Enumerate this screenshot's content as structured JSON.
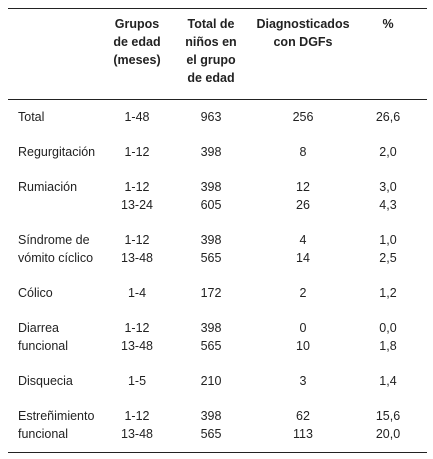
{
  "table": {
    "header": [
      [
        "Grupos",
        "de edad",
        "(meses)"
      ],
      [
        "Total de",
        "niños en",
        "el grupo",
        "de edad"
      ],
      [
        "Diagnosticados",
        "con DGFs"
      ],
      [
        "%"
      ]
    ],
    "rows": [
      {
        "label": [
          "Total"
        ],
        "values": [
          [
            "1-48",
            "963",
            "256",
            "26,6"
          ]
        ]
      },
      {
        "label": [
          "Regurgitación"
        ],
        "values": [
          [
            "1-12",
            "398",
            "8",
            "2,0"
          ]
        ]
      },
      {
        "label": [
          "Rumiación"
        ],
        "values": [
          [
            "1-12",
            "398",
            "12",
            "3,0"
          ],
          [
            "13-24",
            "605",
            "26",
            "4,3"
          ]
        ]
      },
      {
        "label": [
          "Síndrome de",
          "vómito cíclico"
        ],
        "values": [
          [
            "1-12",
            "398",
            "4",
            "1,0"
          ],
          [
            "13-48",
            "565",
            "14",
            "2,5"
          ]
        ]
      },
      {
        "label": [
          "Cólico"
        ],
        "values": [
          [
            "1-4",
            "172",
            "2",
            "1,2"
          ]
        ]
      },
      {
        "label": [
          "Diarrea",
          "funcional"
        ],
        "values": [
          [
            "1-12",
            "398",
            "0",
            "0,0"
          ],
          [
            "13-48",
            "565",
            "10",
            "1,8"
          ]
        ]
      },
      {
        "label": [
          "Disquecia"
        ],
        "values": [
          [
            "1-5",
            "210",
            "3",
            "1,4"
          ]
        ]
      },
      {
        "label": [
          "Estreñimiento",
          "funcional"
        ],
        "values": [
          [
            "1-12",
            "398",
            "62",
            "15,6"
          ],
          [
            "13-48",
            "565",
            "113",
            "20,0"
          ]
        ]
      }
    ]
  }
}
